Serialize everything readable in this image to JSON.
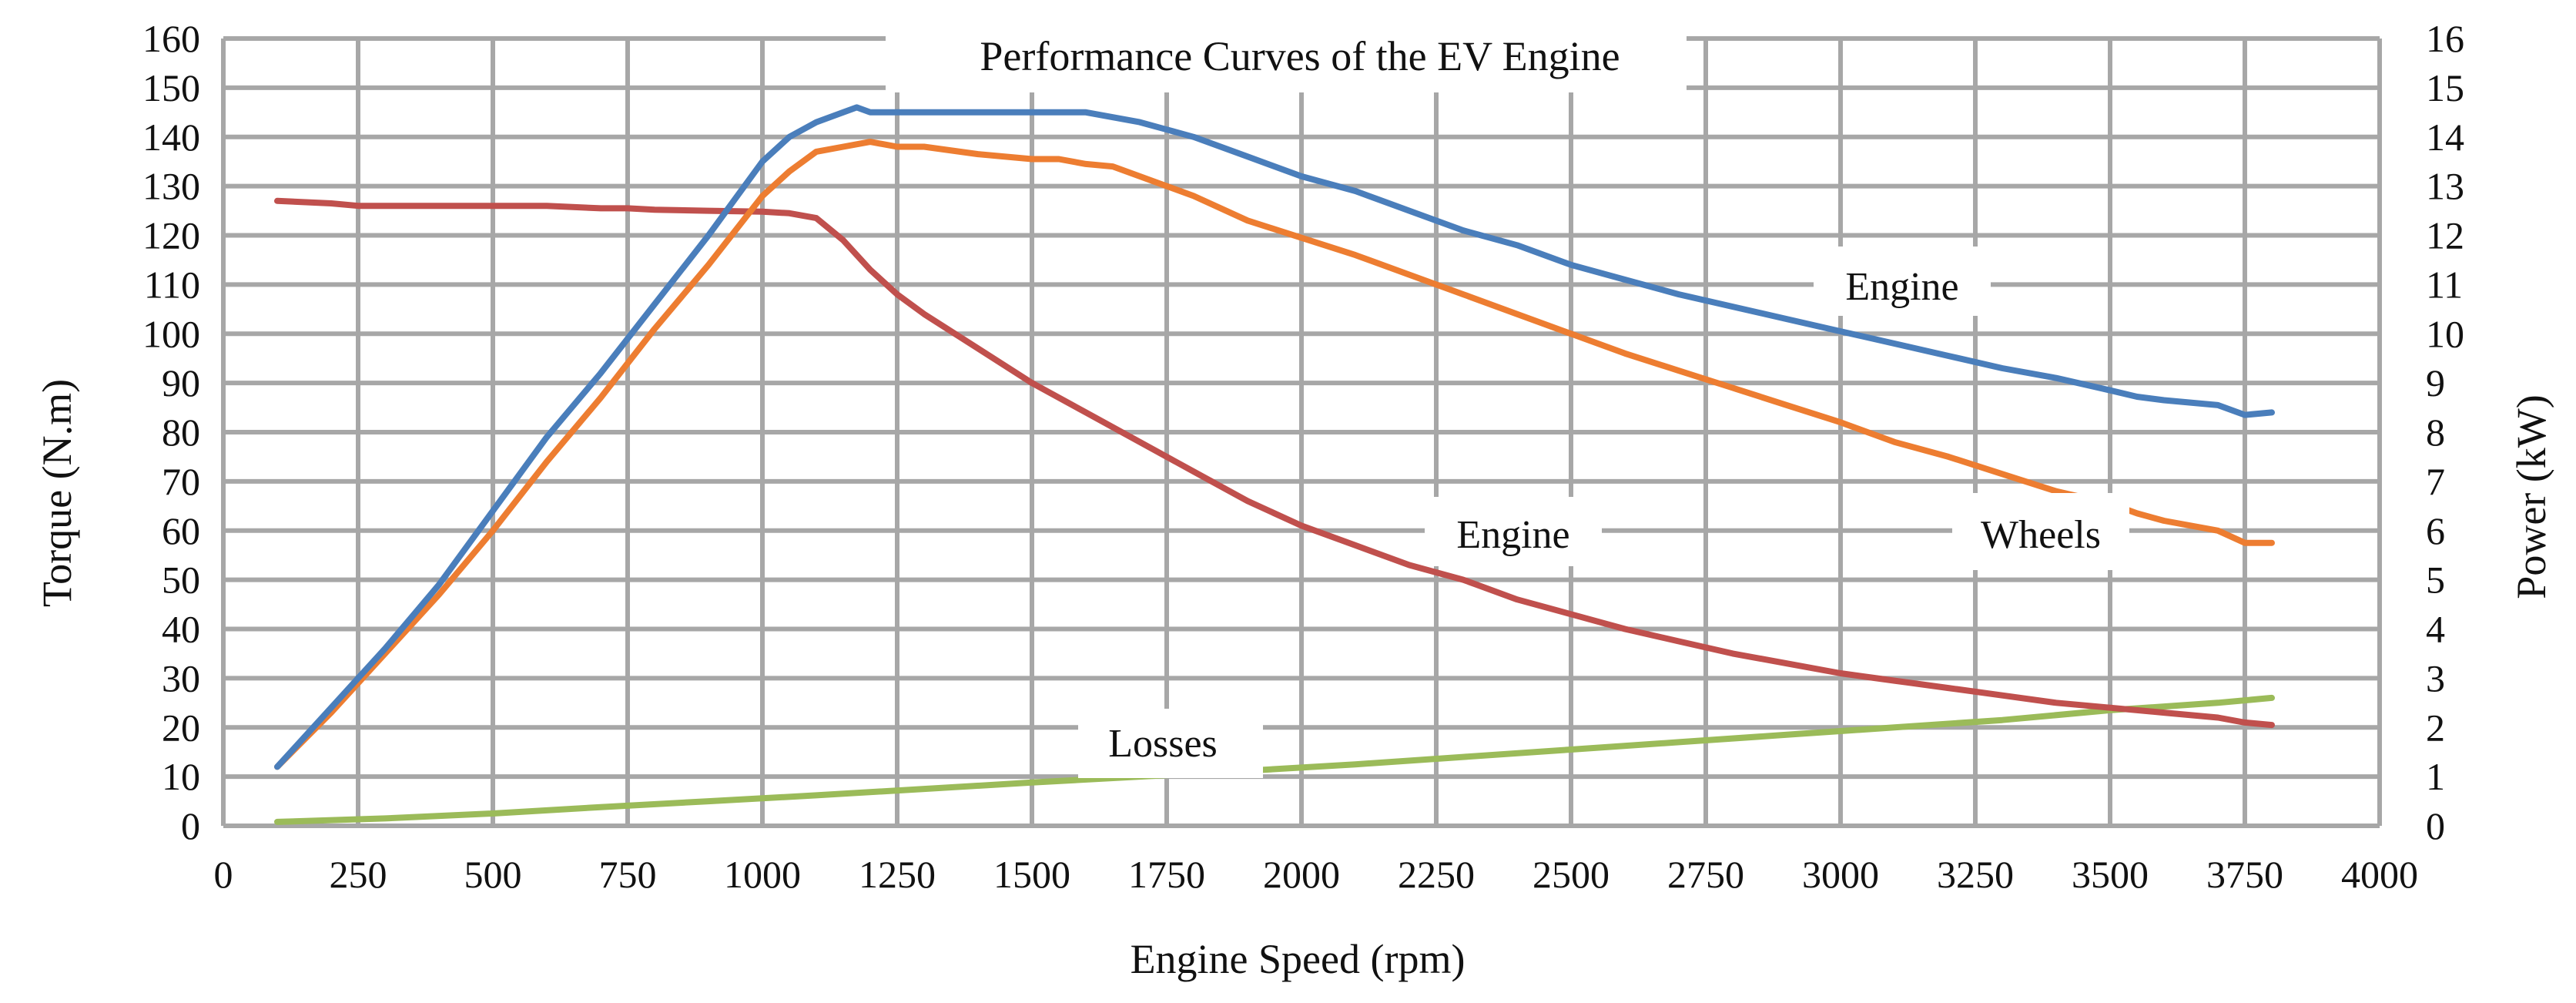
{
  "chart_data": {
    "type": "line",
    "title": "Performance Curves of the EV Engine",
    "xlabel": "Engine Speed (rpm)",
    "ylabel_left": "Torque (N.m)",
    "ylabel_right": "Power (kW)",
    "xlim": [
      0,
      4000
    ],
    "ylim_left": [
      0,
      160
    ],
    "ylim_right": [
      0,
      16
    ],
    "grid": true,
    "x_ticks": [
      "0",
      "250",
      "500",
      "750",
      "1000",
      "1250",
      "1500",
      "1750",
      "2000",
      "2250",
      "2500",
      "2750",
      "3000",
      "3250",
      "3500",
      "3750",
      "4000"
    ],
    "y_left_ticks": [
      "0",
      "10",
      "20",
      "30",
      "40",
      "50",
      "60",
      "70",
      "80",
      "90",
      "100",
      "110",
      "120",
      "130",
      "140",
      "150",
      "160"
    ],
    "y_right_ticks": [
      "0",
      "1",
      "2",
      "3",
      "4",
      "5",
      "6",
      "7",
      "8",
      "9",
      "10",
      "11",
      "12",
      "13",
      "14",
      "15",
      "16"
    ],
    "series": [
      {
        "name": "Engine Power",
        "axis": "right",
        "color": "#4a7ebb",
        "x": [
          100,
          200,
          300,
          400,
          500,
          600,
          700,
          800,
          900,
          1000,
          1050,
          1100,
          1150,
          1175,
          1200,
          1250,
          1300,
          1400,
          1500,
          1600,
          1650,
          1700,
          1750,
          1800,
          1900,
          2000,
          2100,
          2200,
          2300,
          2400,
          2500,
          2600,
          2700,
          2800,
          2900,
          3000,
          3100,
          3200,
          3300,
          3400,
          3500,
          3550,
          3600,
          3700,
          3750,
          3800
        ],
        "y": [
          1.2,
          2.4,
          3.6,
          4.9,
          6.4,
          7.9,
          9.2,
          10.6,
          12.0,
          13.5,
          14.0,
          14.3,
          14.5,
          14.6,
          14.5,
          14.5,
          14.5,
          14.5,
          14.5,
          14.5,
          14.4,
          14.3,
          14.15,
          14.0,
          13.6,
          13.2,
          12.9,
          12.5,
          12.1,
          11.8,
          11.4,
          11.1,
          10.8,
          10.55,
          10.3,
          10.05,
          9.8,
          9.55,
          9.3,
          9.1,
          8.85,
          8.72,
          8.65,
          8.55,
          8.35,
          8.4
        ]
      },
      {
        "name": "Wheels Power",
        "axis": "right",
        "color": "#ed7d31",
        "x": [
          100,
          200,
          300,
          400,
          500,
          600,
          700,
          800,
          900,
          1000,
          1050,
          1100,
          1150,
          1200,
          1250,
          1300,
          1400,
          1500,
          1550,
          1600,
          1650,
          1700,
          1750,
          1800,
          1900,
          2000,
          2100,
          2200,
          2300,
          2400,
          2500,
          2600,
          2700,
          2800,
          2900,
          3000,
          3100,
          3200,
          3300,
          3400,
          3500,
          3550,
          3600,
          3700,
          3750,
          3800
        ],
        "y": [
          1.2,
          2.3,
          3.5,
          4.7,
          6.0,
          7.4,
          8.7,
          10.1,
          11.4,
          12.8,
          13.3,
          13.7,
          13.8,
          13.9,
          13.8,
          13.8,
          13.65,
          13.55,
          13.55,
          13.45,
          13.4,
          13.2,
          13.0,
          12.8,
          12.3,
          11.95,
          11.6,
          11.2,
          10.8,
          10.4,
          10.0,
          9.6,
          9.25,
          8.9,
          8.55,
          8.2,
          7.8,
          7.5,
          7.15,
          6.8,
          6.55,
          6.35,
          6.2,
          6.0,
          5.75,
          5.75
        ]
      },
      {
        "name": "Engine Torque",
        "axis": "left",
        "color": "#c0504d",
        "x": [
          100,
          200,
          250,
          300,
          400,
          500,
          600,
          700,
          750,
          800,
          900,
          1000,
          1050,
          1100,
          1150,
          1200,
          1250,
          1300,
          1400,
          1500,
          1600,
          1700,
          1800,
          1900,
          2000,
          2100,
          2200,
          2300,
          2400,
          2500,
          2600,
          2700,
          2800,
          2900,
          3000,
          3100,
          3200,
          3300,
          3400,
          3500,
          3600,
          3700,
          3750,
          3800
        ],
        "y": [
          127,
          126.5,
          126,
          126,
          126,
          126,
          126,
          125.5,
          125.5,
          125.2,
          125,
          124.8,
          124.5,
          123.5,
          119,
          113,
          108,
          104,
          97,
          90,
          84,
          78,
          72,
          66,
          61,
          57,
          53,
          50,
          46,
          43,
          40,
          37.5,
          35,
          33,
          31,
          29.5,
          28,
          26.5,
          25,
          24,
          23,
          22,
          21,
          20.5
        ]
      },
      {
        "name": "Losses",
        "axis": "right",
        "color": "#9bbb59",
        "x": [
          100,
          300,
          500,
          700,
          900,
          1100,
          1300,
          1500,
          1700,
          1900,
          2100,
          2300,
          2500,
          2700,
          2900,
          3100,
          3300,
          3500,
          3700,
          3800
        ],
        "y": [
          0.08,
          0.15,
          0.25,
          0.38,
          0.5,
          0.62,
          0.75,
          0.88,
          1.0,
          1.12,
          1.25,
          1.4,
          1.55,
          1.7,
          1.85,
          2.0,
          2.15,
          2.35,
          2.5,
          2.6
        ]
      }
    ],
    "annotations": [
      {
        "text": "Engine",
        "x": 3250,
        "y_left": 110
      },
      {
        "text": "Engine",
        "x": 2370,
        "y_left": 60
      },
      {
        "text": "Wheels",
        "x": 3250,
        "y_left": 60
      },
      {
        "text": "Losses",
        "x": 1750,
        "y_left": 17
      }
    ]
  }
}
